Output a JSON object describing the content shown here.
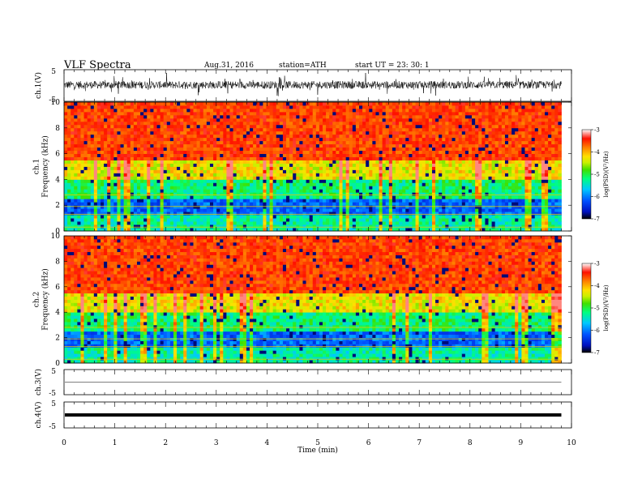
{
  "header": {
    "title": "VLF  Spectra",
    "date": "Aug.31, 2016",
    "station": "station=ATH",
    "start": "start  UT  =    23: 30: 1"
  },
  "colors": {
    "spectrogram_scale": [
      "#000000",
      "#0010c0",
      "#0050ff",
      "#00c8ff",
      "#00ff80",
      "#40e000",
      "#c8f000",
      "#ffe000",
      "#ff8000",
      "#ff1000",
      "#ffffff"
    ]
  },
  "chart_data": [
    {
      "type": "line",
      "ylabel": "ch.1(V)",
      "yticks": [
        "5",
        "-5"
      ],
      "ylim": [
        -5,
        5
      ],
      "description_values": {
        "baseline": 0.2,
        "noise_amplitude": 1.5,
        "spike_max": 3.0
      }
    },
    {
      "type": "heatmap",
      "ylabel": "ch.1\nFrequency  (kHz)",
      "ylabel_lines": [
        "ch.1",
        "Frequency  (kHz)"
      ],
      "yticks": [
        "0",
        "2",
        "4",
        "6",
        "8",
        "10"
      ],
      "ylim": [
        0,
        10
      ],
      "colorbar": {
        "label": "log(PSD)(V²/Hz)",
        "ticks": [
          "-3",
          "-4",
          "-5",
          "-6",
          "-7"
        ],
        "range": [
          -7,
          -3
        ]
      }
    },
    {
      "type": "heatmap",
      "ylabel": "ch.2\nFrequency  (kHz)",
      "ylabel_lines": [
        "ch.2",
        "Frequency  (kHz)"
      ],
      "yticks": [
        "0",
        "2",
        "4",
        "6",
        "8",
        "10"
      ],
      "ylim": [
        0,
        10
      ],
      "colorbar": {
        "label": "log(PSD)(V²/Hz)",
        "ticks": [
          "-3",
          "-4",
          "-5",
          "-6",
          "-7"
        ],
        "range": [
          -7,
          -3
        ]
      }
    },
    {
      "type": "line",
      "ylabel": "ch.3(V)",
      "yticks": [
        "5",
        "-5"
      ],
      "ylim": [
        -5,
        5
      ],
      "description_values": {
        "baseline": 0.0
      }
    },
    {
      "type": "line",
      "ylabel": "ch.4(V)",
      "yticks": [
        "5",
        "-5"
      ],
      "ylim": [
        -5,
        5
      ],
      "description_values": {
        "baseline": 0.0
      }
    }
  ],
  "xaxis": {
    "label": "Time  (min)",
    "ticks": [
      "0",
      "1",
      "2",
      "3",
      "4",
      "5",
      "6",
      "7",
      "8",
      "9",
      "10"
    ],
    "range": [
      0,
      10
    ],
    "data_end": 9.8
  }
}
